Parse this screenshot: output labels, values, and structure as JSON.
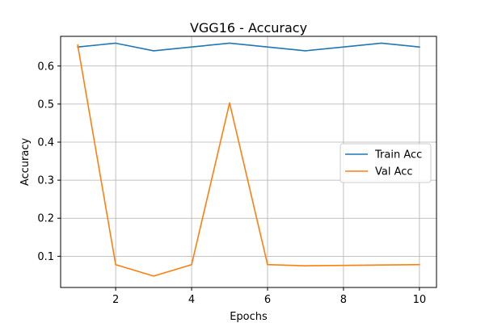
{
  "chart_data": {
    "type": "line",
    "title": "VGG16 - Accuracy",
    "xlabel": "Epochs",
    "ylabel": "Accuracy",
    "x": [
      1,
      2,
      3,
      4,
      5,
      6,
      7,
      8,
      9,
      10
    ],
    "xlim": [
      0.55,
      10.45
    ],
    "ylim": [
      0.018,
      0.678
    ],
    "xticks": [
      2,
      4,
      6,
      8,
      10
    ],
    "yticks": [
      0.1,
      0.2,
      0.3,
      0.4,
      0.5,
      0.6
    ],
    "grid": true,
    "legend_position": "center-right",
    "series": [
      {
        "name": "Train Acc",
        "color": "#1f77b4",
        "values": [
          0.65,
          0.66,
          0.64,
          0.65,
          0.66,
          0.65,
          0.64,
          0.65,
          0.66,
          0.65
        ]
      },
      {
        "name": "Val Acc",
        "color": "#ff7f0e",
        "values": [
          0.655,
          0.078,
          0.048,
          0.078,
          0.503,
          0.078,
          0.075,
          0.076,
          0.077,
          0.078
        ]
      }
    ]
  }
}
